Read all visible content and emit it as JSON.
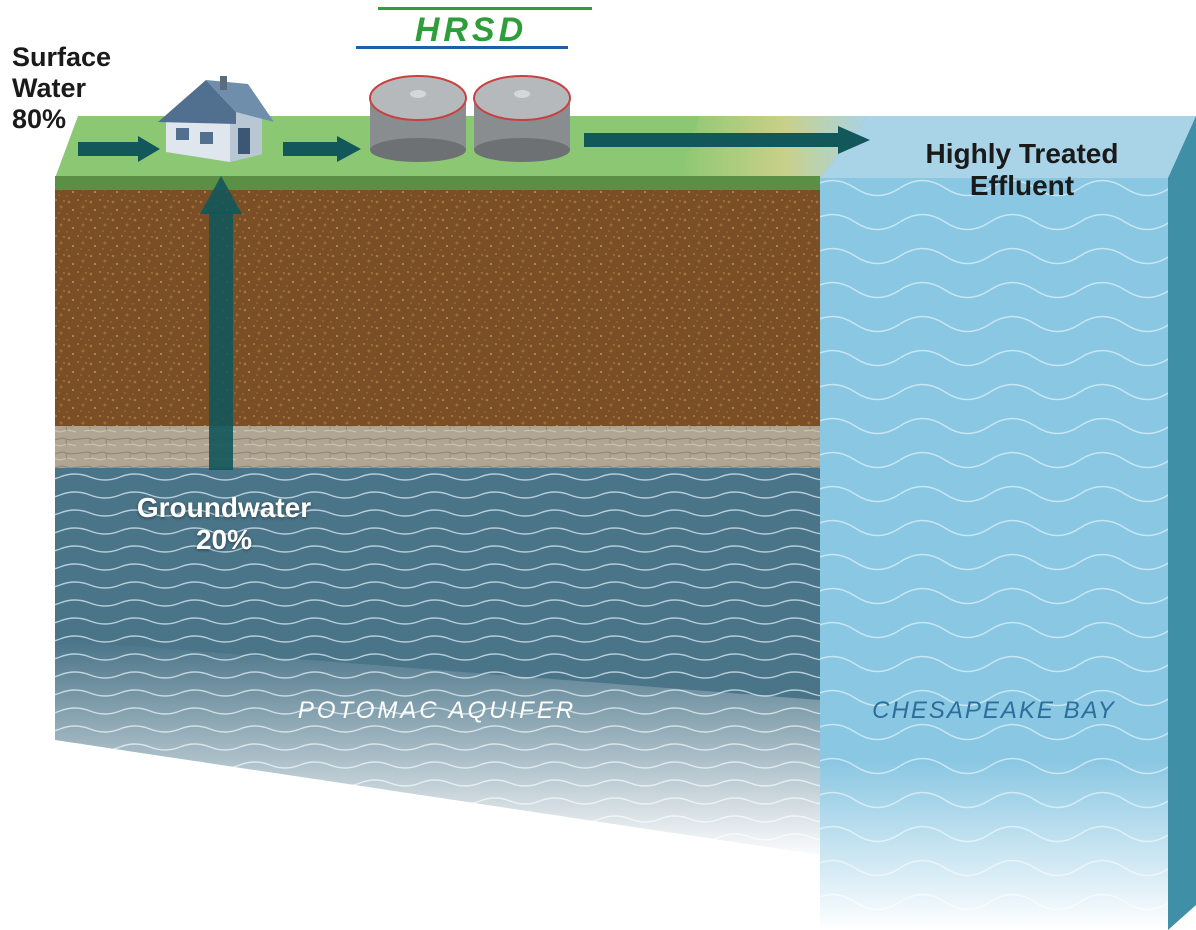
{
  "logo": {
    "text": "HRSD",
    "colors": {
      "green": "#2e9e3a",
      "blue": "#1e5fa8"
    }
  },
  "labels": {
    "surface_water": {
      "line1": "Surface",
      "line2": "Water",
      "line3": "80%"
    },
    "effluent": {
      "line1": "Highly Treated",
      "line2": "Effluent"
    },
    "groundwater": {
      "line1": "Groundwater",
      "line2": "20%"
    },
    "aquifer": "POTOMAC AQUIFER",
    "bay": "CHESAPEAKE BAY"
  },
  "colors": {
    "grass": "#8cc873",
    "soil": "#7a4f25",
    "clay": "#b0a592",
    "aquifer": "#4a7488",
    "bay": "#8ac7e2",
    "arrow": "#12575a"
  },
  "icons": [
    "house-icon",
    "treatment-tank-icon",
    "flow-arrow-icon"
  ]
}
